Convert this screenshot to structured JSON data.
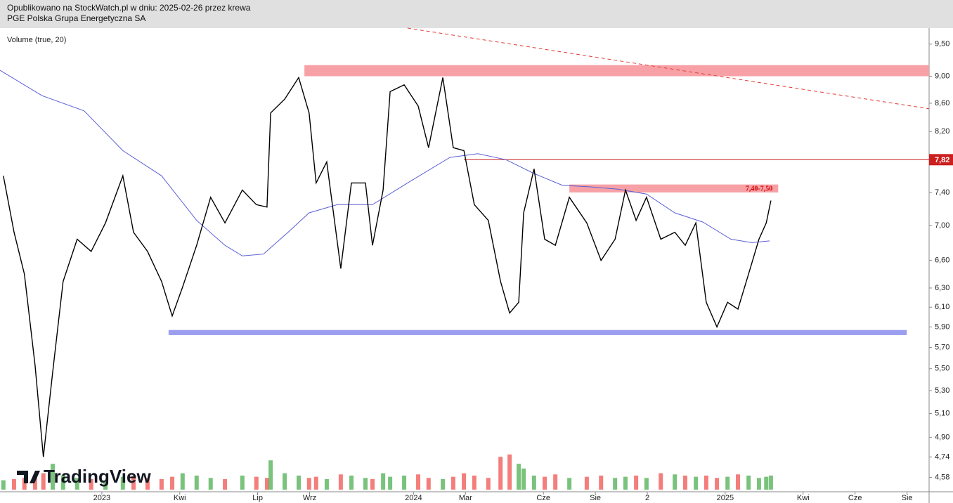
{
  "header": {
    "line1": "Opublikowano na StockWatch.pl w dniu: 2025-02-26 przez krewa",
    "line2": "PGE Polska Grupa Energetyczna SA"
  },
  "logo": "TradingView",
  "chart_data": {
    "type": "line",
    "log_scale": true,
    "xlim": [
      -3.92,
      31.85
    ],
    "xticks": [
      {
        "value": 0,
        "label": "2023"
      },
      {
        "value": 3,
        "label": "Kwi"
      },
      {
        "value": 6,
        "label": "Lip"
      },
      {
        "value": 8,
        "label": "Wrz"
      },
      {
        "value": 12,
        "label": "2024"
      },
      {
        "value": 14,
        "label": "Mar"
      },
      {
        "value": 17,
        "label": "Cze"
      },
      {
        "value": 19,
        "label": "Sie"
      },
      {
        "value": 21,
        "label": "2"
      },
      {
        "value": 24,
        "label": "2025"
      },
      {
        "value": 27,
        "label": "Kwi"
      },
      {
        "value": 29,
        "label": "Cze"
      },
      {
        "value": 31,
        "label": "Sie"
      }
    ],
    "ylim": [
      4.47,
      9.76
    ],
    "yticks": [
      {
        "value": 9.5,
        "label": "9,50"
      },
      {
        "value": 9.0,
        "label": "9,00"
      },
      {
        "value": 8.6,
        "label": "8,60"
      },
      {
        "value": 8.2,
        "label": "8,20"
      },
      {
        "value": 7.4,
        "label": "7,40"
      },
      {
        "value": 7.0,
        "label": "7,00"
      },
      {
        "value": 6.6,
        "label": "6,60"
      },
      {
        "value": 6.3,
        "label": "6,30"
      },
      {
        "value": 6.1,
        "label": "6,10"
      },
      {
        "value": 5.9,
        "label": "5,90"
      },
      {
        "value": 5.7,
        "label": "5,70"
      },
      {
        "value": 5.5,
        "label": "5,50"
      },
      {
        "value": 5.3,
        "label": "5,30"
      },
      {
        "value": 5.1,
        "label": "5,10"
      },
      {
        "value": 4.9,
        "label": "4,90"
      },
      {
        "value": 4.74,
        "label": "4,74"
      },
      {
        "value": 4.58,
        "label": "4,58"
      }
    ],
    "x": [
      -3.79,
      -3.38,
      -2.98,
      -2.57,
      -2.25,
      -1.89,
      -1.49,
      -0.95,
      -0.41,
      0.14,
      0.81,
      1.22,
      1.76,
      2.3,
      2.71,
      3.11,
      3.65,
      4.19,
      4.74,
      5.41,
      5.95,
      6.36,
      6.5,
      7.04,
      7.58,
      7.98,
      8.25,
      8.66,
      9.2,
      9.61,
      10.15,
      10.42,
      10.83,
      11.1,
      11.64,
      12.18,
      12.58,
      13.13,
      13.53,
      13.94,
      14.34,
      14.88,
      15.35,
      15.7,
      16.05,
      16.24,
      16.64,
      17.05,
      17.46,
      18.0,
      18.67,
      19.22,
      19.76,
      20.16,
      20.57,
      20.97,
      21.52,
      22.06,
      22.46,
      22.87,
      23.27,
      23.68,
      24.09,
      24.49,
      24.9,
      25.3,
      25.58,
      25.76
    ],
    "series": [
      {
        "color": "#000000",
        "values": [
          7.61,
          6.92,
          6.45,
          5.53,
          4.74,
          5.47,
          6.37,
          6.84,
          6.7,
          7.03,
          7.61,
          6.92,
          6.7,
          6.37,
          6.01,
          6.31,
          6.77,
          7.34,
          7.03,
          7.43,
          7.25,
          7.22,
          8.46,
          8.66,
          8.98,
          8.46,
          7.52,
          7.79,
          6.51,
          7.52,
          7.52,
          6.77,
          7.43,
          8.77,
          8.87,
          8.56,
          7.98,
          8.98,
          7.98,
          7.94,
          7.25,
          7.06,
          6.37,
          6.04,
          6.15,
          7.15,
          7.7,
          6.84,
          6.77,
          7.34,
          7.03,
          6.6,
          6.84,
          7.43,
          7.06,
          7.34,
          6.84,
          6.92,
          6.77,
          7.03,
          6.15,
          5.9,
          6.15,
          6.08,
          6.45,
          6.84,
          7.03,
          7.3
        ]
      }
    ],
    "moving_average": {
      "color": "#5b5fd6",
      "x": [
        -3.92,
        -2.3,
        -0.68,
        0.81,
        2.3,
        3.65,
        4.74,
        5.41,
        6.22,
        7.17,
        7.98,
        9.07,
        10.42,
        11.77,
        13.4,
        14.48,
        15.56,
        16.64,
        17.73,
        18.81,
        19.89,
        20.97,
        22.06,
        23.14,
        24.22,
        25.03,
        25.71
      ],
      "values": [
        9.09,
        8.71,
        8.49,
        7.94,
        7.61,
        7.06,
        6.77,
        6.65,
        6.67,
        6.92,
        7.15,
        7.25,
        7.25,
        7.52,
        7.85,
        7.9,
        7.82,
        7.64,
        7.49,
        7.47,
        7.44,
        7.38,
        7.15,
        7.04,
        6.84,
        6.8,
        6.82
      ]
    },
    "volume": {
      "name": "Volume (true, 20)",
      "up_color": "#4caf50",
      "down_color": "#ef5350",
      "y2lim": [
        0,
        100
      ],
      "values": [
        8,
        9,
        10,
        12,
        14,
        22,
        12,
        10,
        9,
        8,
        11,
        12,
        10,
        9,
        11,
        14,
        12,
        10,
        9,
        12,
        11,
        10,
        25,
        14,
        12,
        10,
        11,
        9,
        13,
        12,
        10,
        9,
        14,
        11,
        12,
        13,
        10,
        9,
        11,
        14,
        12,
        10,
        28,
        30,
        22,
        18,
        12,
        11,
        13,
        10,
        11,
        12,
        10,
        11,
        12,
        10,
        14,
        13,
        12,
        11,
        12,
        10,
        11,
        13,
        12,
        10,
        11,
        12
      ]
    },
    "zones": [
      {
        "low": 9.0,
        "high": 9.17,
        "from": 7.8,
        "to": 31.85,
        "color": "#f7a1a6"
      },
      {
        "low": 7.4,
        "high": 7.5,
        "from": 18.0,
        "to": 26.04,
        "color": "#f7a1a6",
        "label": "7,40-7,50"
      },
      {
        "low": 5.82,
        "high": 5.87,
        "from": 2.57,
        "to": 30.99,
        "color": "#9c9ff0"
      }
    ],
    "level": {
      "value": 7.82,
      "label": "7,82",
      "from": 13.94,
      "color": "#cc1f1f"
    },
    "trendline": {
      "x": [
        11.77,
        31.85
      ],
      "values": [
        9.76,
        8.52
      ],
      "color": "#e53935"
    }
  }
}
